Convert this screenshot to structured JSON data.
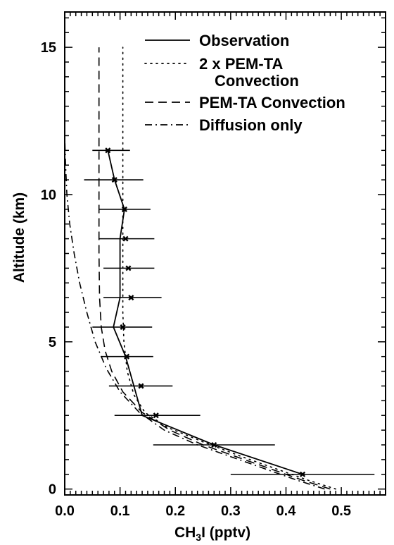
{
  "chart_data": {
    "type": "line",
    "xlabel_main": "CH",
    "xlabel_sub": "3",
    "xlabel_rest": "I (pptv)",
    "ylabel": "Altitude (km)",
    "xlim": [
      0.0,
      0.58
    ],
    "ylim": [
      -0.2,
      16.2
    ],
    "x_ticks": [
      0.0,
      0.1,
      0.2,
      0.3,
      0.4,
      0.5
    ],
    "x_tick_labels": [
      "0.0",
      "0.1",
      "0.2",
      "0.3",
      "0.4",
      "0.5"
    ],
    "y_ticks": [
      0,
      5,
      10,
      15
    ],
    "y_tick_labels": [
      "0",
      "5",
      "10",
      "15"
    ],
    "grid": false,
    "legend_position": "top-right",
    "legend": [
      {
        "label": "Observation",
        "style": "solid"
      },
      {
        "label": "2 x PEM-TA",
        "label2": "Convection",
        "style": "dotted"
      },
      {
        "label": "PEM-TA Convection",
        "style": "dashed"
      },
      {
        "label": "Diffusion only",
        "style": "dashdot"
      }
    ],
    "observation": {
      "name": "Observation",
      "points": [
        {
          "y": 0.5,
          "x": 0.43,
          "xmin": 0.3,
          "xmax": 0.56
        },
        {
          "y": 1.5,
          "x": 0.27,
          "xmin": 0.16,
          "xmax": 0.38
        },
        {
          "y": 2.5,
          "x": 0.165,
          "xmin": 0.09,
          "xmax": 0.245
        },
        {
          "y": 3.5,
          "x": 0.138,
          "xmin": 0.08,
          "xmax": 0.195
        },
        {
          "y": 4.5,
          "x": 0.112,
          "xmin": 0.065,
          "xmax": 0.16
        },
        {
          "y": 5.5,
          "x": 0.105,
          "xmin": 0.05,
          "xmax": 0.158
        },
        {
          "y": 6.5,
          "x": 0.12,
          "xmin": 0.07,
          "xmax": 0.175
        },
        {
          "y": 7.5,
          "x": 0.115,
          "xmin": 0.07,
          "xmax": 0.162
        },
        {
          "y": 8.5,
          "x": 0.11,
          "xmin": 0.062,
          "xmax": 0.162
        },
        {
          "y": 9.5,
          "x": 0.108,
          "xmin": 0.062,
          "xmax": 0.155
        },
        {
          "y": 10.5,
          "x": 0.09,
          "xmin": 0.035,
          "xmax": 0.142
        },
        {
          "y": 11.5,
          "x": 0.078,
          "xmin": 0.05,
          "xmax": 0.118
        }
      ],
      "line_points": [
        [
          0.43,
          0.5
        ],
        [
          0.27,
          1.5
        ],
        [
          0.14,
          2.5
        ],
        [
          0.125,
          3.5
        ],
        [
          0.11,
          4.5
        ],
        [
          0.088,
          5.5
        ],
        [
          0.1,
          6.5
        ],
        [
          0.1,
          7.5
        ],
        [
          0.1,
          8.5
        ],
        [
          0.108,
          9.5
        ],
        [
          0.09,
          10.5
        ],
        [
          0.078,
          11.5
        ]
      ]
    },
    "series": [
      {
        "name": "2 x PEM-TA Convection",
        "style": "dotted",
        "points": [
          [
            0.49,
            0.0
          ],
          [
            0.44,
            0.3
          ],
          [
            0.38,
            0.7
          ],
          [
            0.32,
            1.1
          ],
          [
            0.25,
            1.6
          ],
          [
            0.185,
            2.1
          ],
          [
            0.145,
            2.6
          ],
          [
            0.125,
            3.2
          ],
          [
            0.113,
            4.0
          ],
          [
            0.107,
            5.0
          ],
          [
            0.105,
            6.0
          ],
          [
            0.105,
            8.0
          ],
          [
            0.105,
            11.0
          ],
          [
            0.105,
            15.0
          ]
        ]
      },
      {
        "name": "PEM-TA Convection",
        "style": "dashed",
        "points": [
          [
            0.48,
            0.0
          ],
          [
            0.43,
            0.3
          ],
          [
            0.37,
            0.7
          ],
          [
            0.31,
            1.1
          ],
          [
            0.25,
            1.5
          ],
          [
            0.19,
            2.0
          ],
          [
            0.14,
            2.6
          ],
          [
            0.105,
            3.3
          ],
          [
            0.085,
            4.0
          ],
          [
            0.073,
            4.7
          ],
          [
            0.066,
            5.5
          ],
          [
            0.063,
            6.5
          ],
          [
            0.062,
            8.0
          ],
          [
            0.062,
            11.0
          ],
          [
            0.062,
            15.0
          ]
        ]
      },
      {
        "name": "Diffusion only",
        "style": "dashdot",
        "points": [
          [
            0.47,
            0.0
          ],
          [
            0.42,
            0.3
          ],
          [
            0.36,
            0.7
          ],
          [
            0.3,
            1.1
          ],
          [
            0.24,
            1.5
          ],
          [
            0.18,
            2.0
          ],
          [
            0.135,
            2.6
          ],
          [
            0.1,
            3.3
          ],
          [
            0.075,
            4.1
          ],
          [
            0.055,
            5.0
          ],
          [
            0.04,
            6.0
          ],
          [
            0.027,
            7.0
          ],
          [
            0.017,
            8.0
          ],
          [
            0.009,
            9.0
          ],
          [
            0.004,
            10.0
          ],
          [
            0.0015,
            11.0
          ],
          [
            0.0,
            12.0
          ]
        ]
      }
    ]
  }
}
